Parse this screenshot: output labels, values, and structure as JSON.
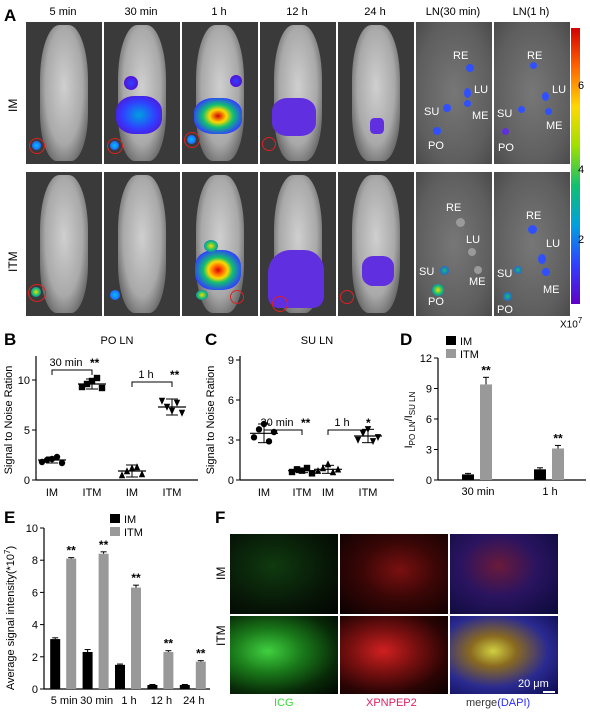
{
  "panel_letters": [
    "A",
    "B",
    "C",
    "D",
    "E",
    "F"
  ],
  "panelA": {
    "time_labels": [
      "5 min",
      "30 min",
      "1 h",
      "12 h",
      "24 h",
      "LN(30 min)",
      "LN(1 h)"
    ],
    "row_labels": [
      "IM",
      "ITM"
    ],
    "ln_labels": [
      "RE",
      "LU",
      "SU",
      "ME",
      "PO"
    ],
    "colorbar_ticks": [
      "6",
      "4",
      "2"
    ],
    "colorbar_exp": "X10",
    "colorbar_exp_sup": "7",
    "colors": [
      "#d40000",
      "#ff6600",
      "#ffd800",
      "#10c070",
      "#00a0e0",
      "#3040ff",
      "#6000c8"
    ]
  },
  "chart_data": [
    {
      "id": "B",
      "type": "scatter",
      "title": "PO LN",
      "ylabel": "Signal to Noise Ration",
      "categories": [
        "IM",
        "ITM",
        "IM",
        "ITM"
      ],
      "ylim": [
        0,
        12
      ],
      "yticks": [
        0,
        5,
        10
      ],
      "groups": [
        {
          "name": "IM",
          "points": [
            1.8,
            2.0,
            2.1,
            2.3,
            1.7
          ],
          "mean": 2.0,
          "err": 0.3,
          "marker": "circle"
        },
        {
          "name": "ITM",
          "points": [
            9.3,
            9.6,
            9.9,
            10.2,
            9.2
          ],
          "mean": 9.6,
          "err": 0.5,
          "marker": "square"
        },
        {
          "name": "IM",
          "points": [
            0.5,
            0.9,
            1.2,
            1.3,
            0.6
          ],
          "mean": 0.9,
          "err": 0.6,
          "marker": "triangle-up"
        },
        {
          "name": "ITM",
          "points": [
            7.9,
            7.3,
            6.9,
            7.7,
            6.7
          ],
          "mean": 7.3,
          "err": 0.8,
          "marker": "triangle-down"
        }
      ],
      "annotations": [
        {
          "text": "30 min",
          "sig": "**"
        },
        {
          "text": "1 h",
          "sig": "**"
        }
      ]
    },
    {
      "id": "C",
      "type": "scatter",
      "title": "SU LN",
      "ylabel": "Signal to Noise Ration",
      "categories": [
        "IM",
        "ITM",
        "IM",
        "ITM"
      ],
      "ylim": [
        0,
        9
      ],
      "yticks": [
        0,
        3,
        6,
        9
      ],
      "groups": [
        {
          "name": "IM",
          "points": [
            3.2,
            3.8,
            4.2,
            2.9,
            3.6
          ],
          "mean": 3.5,
          "err": 0.7,
          "marker": "circle"
        },
        {
          "name": "ITM",
          "points": [
            0.6,
            0.8,
            0.7,
            0.9,
            0.5
          ],
          "mean": 0.7,
          "err": 0.15,
          "marker": "square"
        },
        {
          "name": "IM",
          "points": [
            0.7,
            0.9,
            1.2,
            0.6,
            0.8
          ],
          "mean": 0.8,
          "err": 0.3,
          "marker": "triangle-up"
        },
        {
          "name": "ITM",
          "points": [
            3.0,
            3.5,
            3.8,
            2.9,
            3.2
          ],
          "mean": 3.3,
          "err": 0.5,
          "marker": "triangle-down"
        }
      ],
      "annotations": [
        {
          "text": "30 min",
          "sig": "**"
        },
        {
          "text": "1 h",
          "sig": "*"
        }
      ]
    },
    {
      "id": "D",
      "type": "bar",
      "ylabel_main": "I",
      "ylabel_sub1": "PO LN",
      "ylabel_mid": "/I",
      "ylabel_sub2": "SU LN",
      "categories": [
        "30 min",
        "1 h"
      ],
      "ylim": [
        0,
        12
      ],
      "yticks": [
        0,
        3,
        6,
        9,
        12
      ],
      "series": [
        {
          "name": "IM",
          "values": [
            0.55,
            1.05
          ],
          "errors": [
            0.1,
            0.15
          ],
          "color": "#000000"
        },
        {
          "name": "ITM",
          "values": [
            9.4,
            3.1
          ],
          "errors": [
            0.7,
            0.3
          ],
          "color": "#999999"
        }
      ],
      "sig": [
        "**",
        "**"
      ]
    },
    {
      "id": "E",
      "type": "bar",
      "ylabel": "Average signal intensity(*10",
      "ylabel_sup": "7",
      "ylabel_end": ")",
      "categories": [
        "5 min",
        "30 min",
        "1 h",
        "12 h",
        "24 h"
      ],
      "ylim": [
        0,
        10
      ],
      "yticks": [
        0,
        2,
        4,
        6,
        8,
        10
      ],
      "series": [
        {
          "name": "IM",
          "values": [
            3.1,
            2.3,
            1.5,
            0.25,
            0.25
          ],
          "errors": [
            0.08,
            0.15,
            0.05,
            0.03,
            0.03
          ],
          "color": "#000000"
        },
        {
          "name": "ITM",
          "values": [
            8.1,
            8.4,
            6.3,
            2.3,
            1.7
          ],
          "errors": [
            0.06,
            0.12,
            0.15,
            0.08,
            0.06
          ],
          "color": "#999999"
        }
      ],
      "sig": [
        "**",
        "**",
        "**",
        "**",
        "**"
      ]
    }
  ],
  "panelF": {
    "row_labels": [
      "IM",
      "ITM"
    ],
    "col_labels": [
      "ICG",
      "XPNPEP2",
      "merge"
    ],
    "merge_dapi": "(DAPI)",
    "scale_bar": "20 μm",
    "col_colors": [
      "#33dd33",
      "#e02060",
      "#2a2aff"
    ]
  }
}
